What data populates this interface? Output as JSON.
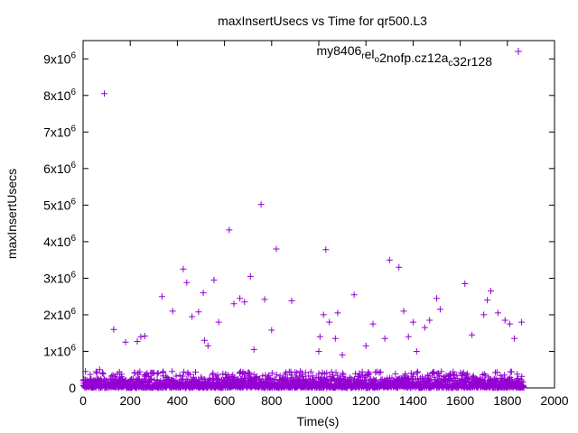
{
  "chart_data": {
    "type": "scatter",
    "title": "maxInsertUsecs vs Time for qr500.L3",
    "xlabel": "Time(s)",
    "ylabel": "maxInsertUsecs",
    "xlim": [
      0,
      2000
    ],
    "ylim": [
      0,
      9500000
    ],
    "x_ticks": [
      0,
      200,
      400,
      600,
      800,
      1000,
      1200,
      1400,
      1600,
      1800,
      2000
    ],
    "y_ticks": [
      {
        "value": 0,
        "base": "0",
        "exp": ""
      },
      {
        "value": 1000000,
        "base": "1x10",
        "exp": "6"
      },
      {
        "value": 2000000,
        "base": "2x10",
        "exp": "6"
      },
      {
        "value": 3000000,
        "base": "3x10",
        "exp": "6"
      },
      {
        "value": 4000000,
        "base": "4x10",
        "exp": "6"
      },
      {
        "value": 5000000,
        "base": "5x10",
        "exp": "6"
      },
      {
        "value": 6000000,
        "base": "6x10",
        "exp": "6"
      },
      {
        "value": 7000000,
        "base": "7x10",
        "exp": "6"
      },
      {
        "value": 8000000,
        "base": "8x10",
        "exp": "6"
      },
      {
        "value": 9000000,
        "base": "9x10",
        "exp": "6"
      }
    ],
    "grid": false,
    "legend_position": "top-right",
    "series": [
      {
        "name": "my8406_rel_o2nofp.cz12a_c32r128",
        "color": "#9400d3",
        "marker": "+",
        "x_range_dense": [
          0,
          1870
        ],
        "dense_band_max": 450000,
        "points": [
          {
            "x": 10,
            "y": 450000
          },
          {
            "x": 70,
            "y": 500000
          },
          {
            "x": 90,
            "y": 8050000
          },
          {
            "x": 130,
            "y": 1600000
          },
          {
            "x": 180,
            "y": 1250000
          },
          {
            "x": 230,
            "y": 1270000
          },
          {
            "x": 245,
            "y": 1400000
          },
          {
            "x": 262,
            "y": 1420000
          },
          {
            "x": 335,
            "y": 2500000
          },
          {
            "x": 380,
            "y": 2100000
          },
          {
            "x": 425,
            "y": 3250000
          },
          {
            "x": 440,
            "y": 2880000
          },
          {
            "x": 462,
            "y": 1950000
          },
          {
            "x": 490,
            "y": 2080000
          },
          {
            "x": 510,
            "y": 2600000
          },
          {
            "x": 515,
            "y": 1300000
          },
          {
            "x": 530,
            "y": 1150000
          },
          {
            "x": 555,
            "y": 2950000
          },
          {
            "x": 575,
            "y": 1800000
          },
          {
            "x": 620,
            "y": 4320000
          },
          {
            "x": 640,
            "y": 2300000
          },
          {
            "x": 665,
            "y": 2450000
          },
          {
            "x": 685,
            "y": 2350000
          },
          {
            "x": 710,
            "y": 3050000
          },
          {
            "x": 725,
            "y": 1050000
          },
          {
            "x": 755,
            "y": 5020000
          },
          {
            "x": 770,
            "y": 2420000
          },
          {
            "x": 800,
            "y": 1580000
          },
          {
            "x": 820,
            "y": 3800000
          },
          {
            "x": 885,
            "y": 2380000
          },
          {
            "x": 1000,
            "y": 1000000
          },
          {
            "x": 1005,
            "y": 1400000
          },
          {
            "x": 1020,
            "y": 2000000
          },
          {
            "x": 1030,
            "y": 3780000
          },
          {
            "x": 1045,
            "y": 1800000
          },
          {
            "x": 1070,
            "y": 1350000
          },
          {
            "x": 1080,
            "y": 2050000
          },
          {
            "x": 1100,
            "y": 900000
          },
          {
            "x": 1150,
            "y": 2550000
          },
          {
            "x": 1200,
            "y": 1150000
          },
          {
            "x": 1230,
            "y": 1750000
          },
          {
            "x": 1280,
            "y": 1350000
          },
          {
            "x": 1300,
            "y": 3500000
          },
          {
            "x": 1340,
            "y": 3300000
          },
          {
            "x": 1360,
            "y": 2100000
          },
          {
            "x": 1380,
            "y": 1400000
          },
          {
            "x": 1400,
            "y": 1800000
          },
          {
            "x": 1415,
            "y": 1000000
          },
          {
            "x": 1450,
            "y": 1650000
          },
          {
            "x": 1470,
            "y": 1850000
          },
          {
            "x": 1500,
            "y": 2450000
          },
          {
            "x": 1515,
            "y": 2150000
          },
          {
            "x": 1620,
            "y": 2850000
          },
          {
            "x": 1650,
            "y": 1450000
          },
          {
            "x": 1700,
            "y": 2000000
          },
          {
            "x": 1715,
            "y": 2400000
          },
          {
            "x": 1730,
            "y": 2650000
          },
          {
            "x": 1760,
            "y": 2050000
          },
          {
            "x": 1790,
            "y": 1850000
          },
          {
            "x": 1810,
            "y": 1750000
          },
          {
            "x": 1830,
            "y": 1350000
          },
          {
            "x": 1860,
            "y": 1800000
          }
        ]
      }
    ]
  }
}
